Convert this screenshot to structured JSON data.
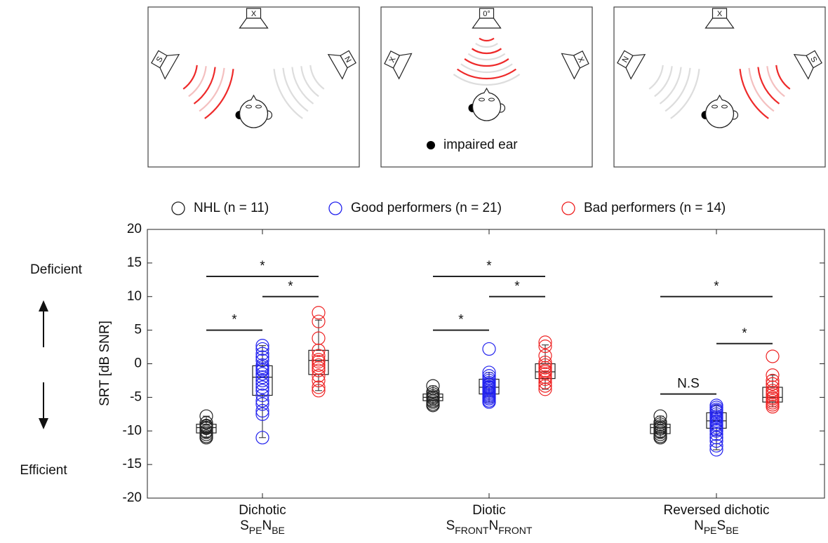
{
  "diagram": {
    "panels": [
      {
        "top": "X",
        "left": "S",
        "right": "N"
      },
      {
        "top": "0°",
        "left": "X",
        "right": "X"
      },
      {
        "top": "X",
        "left": "N",
        "right": "S"
      }
    ],
    "legend": "impaired ear"
  },
  "chart_data": {
    "type": "box",
    "y_label": "SRT [dB SNR]",
    "upper_note": "Deficient",
    "lower_note": "Efficient",
    "categories": [
      "Dichotic",
      "Diotic",
      "Reversed dichotic"
    ],
    "category_notation": [
      [
        [
          "S",
          "PE"
        ],
        [
          "N",
          "BE"
        ]
      ],
      [
        [
          "S",
          "FRONT"
        ],
        [
          "N",
          "FRONT"
        ]
      ],
      [
        [
          "N",
          "PE"
        ],
        [
          "S",
          "BE"
        ]
      ]
    ],
    "ylim": [
      -20,
      20
    ],
    "yticks": [
      -20,
      -15,
      -10,
      -5,
      0,
      5,
      10,
      15,
      20
    ],
    "series": [
      {
        "name": "NHL (n = 11)",
        "color": "#222222",
        "values": [
          [
            -7.8,
            -8.8,
            -9.2,
            -9.3,
            -9.5,
            -9.6,
            -10,
            -10.2,
            -10.5,
            -10.8,
            -11
          ],
          [
            -3.3,
            -4.2,
            -4.5,
            -4.8,
            -5,
            -5,
            -5.2,
            -5.5,
            -5.7,
            -6,
            -6.2
          ],
          [
            -7.8,
            -8.7,
            -9,
            -9.3,
            -9.5,
            -9.7,
            -10,
            -10.2,
            -10.5,
            -10.8,
            -11
          ]
        ],
        "boxes": [
          {
            "whisker_low": -11,
            "q1": -10.3,
            "median": -9.5,
            "q3": -9,
            "whisker_high": -7.8
          },
          {
            "whisker_low": -6.2,
            "q1": -5.5,
            "median": -5,
            "q3": -4.5,
            "whisker_high": -3.3
          },
          {
            "whisker_low": -11,
            "q1": -10.4,
            "median": -9.5,
            "q3": -9,
            "whisker_high": -7.8
          }
        ]
      },
      {
        "name": "Good performers (n = 21)",
        "color": "#2222ee",
        "values": [
          [
            2.7,
            2.2,
            1.5,
            1,
            0.5,
            -0.2,
            -0.5,
            -0.8,
            -1,
            -1.5,
            -2,
            -2.5,
            -3,
            -3.5,
            -4,
            -4.7,
            -5.5,
            -6,
            -7,
            -7.5,
            -11
          ],
          [
            2.2,
            -1.3,
            -1.8,
            -2.2,
            -2.5,
            -2.8,
            -3,
            -3.2,
            -3.4,
            -3.5,
            -3.6,
            -3.8,
            -4,
            -4.2,
            -4.4,
            -4.6,
            -4.8,
            -5,
            -5.2,
            -5.5,
            -5.7
          ],
          [
            -6.2,
            -6.5,
            -6.8,
            -7,
            -7.2,
            -7.5,
            -7.8,
            -8,
            -8.2,
            -8.5,
            -8.7,
            -9,
            -9.2,
            -9.5,
            -9.8,
            -10,
            -10.5,
            -11,
            -11.5,
            -12.2,
            -12.8
          ]
        ],
        "boxes": [
          {
            "whisker_low": -11,
            "q1": -4.7,
            "median": -2,
            "q3": -0.3,
            "whisker_high": 2.7
          },
          {
            "whisker_low": -5.7,
            "q1": -4.5,
            "median": -3.5,
            "q3": -2.3,
            "whisker_high": -1.3
          },
          {
            "whisker_low": -12.8,
            "q1": -9.6,
            "median": -8.5,
            "q3": -7.3,
            "whisker_high": -6.2
          }
        ]
      },
      {
        "name": "Bad performers (n = 14)",
        "color": "#ee2222",
        "values": [
          [
            7.6,
            6.3,
            3.8,
            2,
            1.2,
            0.6,
            0.3,
            -0.2,
            -0.6,
            -1,
            -1.8,
            -2.5,
            -3.5,
            -4
          ],
          [
            3.2,
            2.6,
            1.2,
            0.2,
            -0.2,
            -0.6,
            -1,
            -1.2,
            -1.5,
            -2,
            -2.3,
            -2.8,
            -3.3,
            -3.8
          ],
          [
            1.1,
            -1.7,
            -2.5,
            -3,
            -3.5,
            -4,
            -4.3,
            -4.6,
            -5,
            -5.2,
            -5.5,
            -5.8,
            -6.1,
            -6.4
          ]
        ],
        "boxes": [
          {
            "whisker_low": -4,
            "q1": -1.6,
            "median": 0.5,
            "q3": 2,
            "whisker_high": 6.5
          },
          {
            "whisker_low": -3.8,
            "q1": -2.2,
            "median": -1.2,
            "q3": 0,
            "whisker_high": 2.8
          },
          {
            "whisker_low": -6.4,
            "q1": -5.7,
            "median": -5,
            "q3": -3.5,
            "whisker_high": -1.7
          }
        ]
      }
    ],
    "significance": [
      {
        "category": 0,
        "from": 0,
        "to": 2,
        "y": 13,
        "label": "*"
      },
      {
        "category": 0,
        "from": 1,
        "to": 2,
        "y": 10,
        "label": "*"
      },
      {
        "category": 0,
        "from": 0,
        "to": 1,
        "y": 5,
        "label": "*"
      },
      {
        "category": 1,
        "from": 0,
        "to": 2,
        "y": 13,
        "label": "*"
      },
      {
        "category": 1,
        "from": 1,
        "to": 2,
        "y": 10,
        "label": "*"
      },
      {
        "category": 1,
        "from": 0,
        "to": 1,
        "y": 5,
        "label": "*"
      },
      {
        "category": 2,
        "from": 0,
        "to": 2,
        "y": 10,
        "label": "*"
      },
      {
        "category": 2,
        "from": 1,
        "to": 2,
        "y": 3,
        "label": "*"
      },
      {
        "category": 2,
        "from": 0,
        "to": 1,
        "y": -4.5,
        "label": "N.S"
      }
    ]
  }
}
